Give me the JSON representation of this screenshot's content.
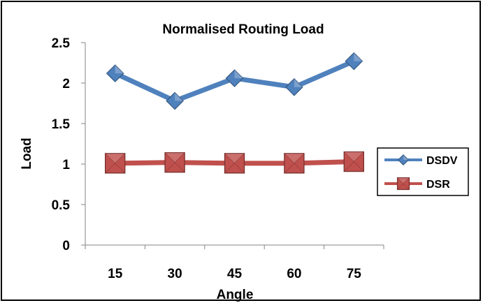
{
  "chart_data": {
    "type": "line",
    "title": "Normalised Routing Load",
    "xlabel": "Angle",
    "ylabel": "Load",
    "categories": [
      "15",
      "30",
      "45",
      "60",
      "75"
    ],
    "ylim": [
      0,
      2.5
    ],
    "yticks": [
      "0",
      "0.5",
      "1",
      "1.5",
      "2",
      "2.5"
    ],
    "grid": false,
    "legend_position": "right",
    "series": [
      {
        "name": "DSDV",
        "values": [
          2.12,
          1.78,
          2.06,
          1.95,
          2.27
        ],
        "color": "#4f81bd",
        "marker": "diamond"
      },
      {
        "name": "DSR",
        "values": [
          1.01,
          1.02,
          1.01,
          1.01,
          1.03
        ],
        "color": "#c0504d",
        "marker": "square"
      }
    ]
  }
}
